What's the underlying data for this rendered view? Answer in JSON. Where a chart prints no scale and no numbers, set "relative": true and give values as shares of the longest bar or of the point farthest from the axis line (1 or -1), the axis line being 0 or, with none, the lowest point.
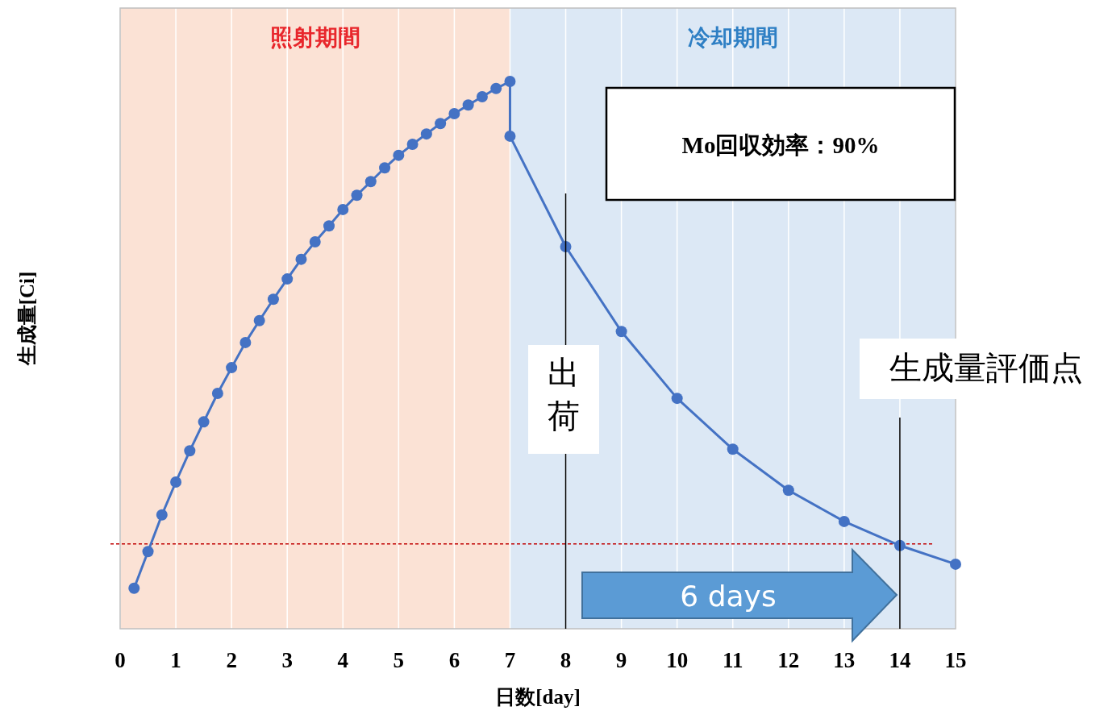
{
  "chart_data": {
    "type": "line",
    "xlabel": "日数[day]",
    "ylabel": "生成量[Ci]",
    "relative": true,
    "xlim": [
      0,
      15
    ],
    "xticks": [
      0,
      1,
      2,
      3,
      4,
      5,
      6,
      7,
      8,
      9,
      10,
      11,
      12,
      13,
      14,
      15
    ],
    "grid": "x",
    "marker": "circle",
    "x": [
      0.25,
      0.5,
      0.75,
      1,
      1.25,
      1.5,
      1.75,
      2,
      2.25,
      2.5,
      2.75,
      3,
      3.25,
      3.5,
      3.75,
      4,
      4.25,
      4.5,
      4.75,
      5,
      5.25,
      5.5,
      5.75,
      6,
      6.25,
      6.5,
      6.75,
      7,
      7,
      8,
      9,
      10,
      11,
      12,
      13,
      14,
      15
    ],
    "series": [
      {
        "color": "#4472c4",
        "values": [
          0.074,
          0.141,
          0.208,
          0.268,
          0.325,
          0.378,
          0.43,
          0.477,
          0.523,
          0.563,
          0.602,
          0.639,
          0.675,
          0.707,
          0.736,
          0.766,
          0.792,
          0.817,
          0.842,
          0.865,
          0.885,
          0.904,
          0.923,
          0.941,
          0.957,
          0.972,
          0.987,
          1,
          0.9,
          0.698,
          0.543,
          0.421,
          0.328,
          0.253,
          0.196,
          0.152,
          0.118
        ]
      }
    ],
    "bands": [
      {
        "axis": "x",
        "from": 0,
        "to": 7,
        "label": "照射期間",
        "color": "#fbe2d5"
      },
      {
        "axis": "x",
        "from": 7,
        "to": 15,
        "label": "冷却期間",
        "color": "#dce8f5"
      }
    ],
    "ref_lines": [
      {
        "axis": "y",
        "value": 0.155,
        "color": "#c00000",
        "line_style": "dashed"
      },
      {
        "axis": "x",
        "value": 8,
        "label": "出荷",
        "color": "#000000"
      },
      {
        "axis": "x",
        "value": 14,
        "label": "生成量評価点",
        "color": "#000000"
      }
    ],
    "annotations": [
      "Mo回収効率：90%",
      "6 days"
    ]
  }
}
